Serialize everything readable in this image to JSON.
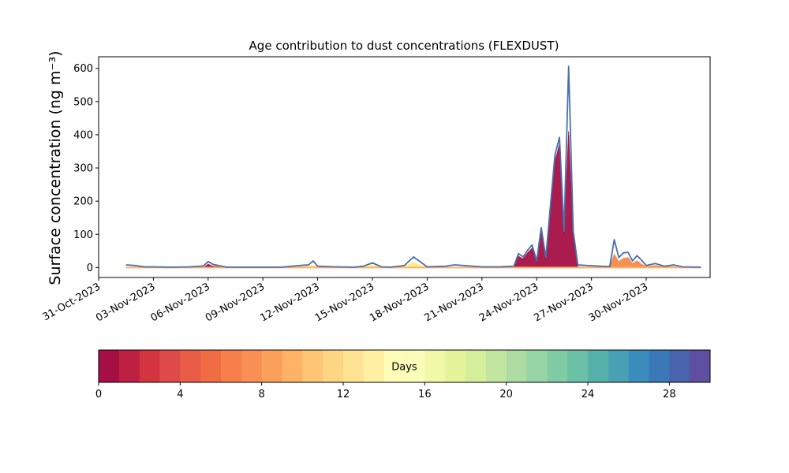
{
  "chart_data": [
    {
      "type": "area",
      "title": "Age contribution to dust concentrations (FLEXDUST)",
      "ylabel": "Surface concentration (ng m⁻³)",
      "xlabel": "",
      "x_axis": "date",
      "xlim": [
        "2023-10-31T00:00",
        "2023-12-03T12:00"
      ],
      "ylim": [
        -30,
        635
      ],
      "grid": false,
      "x_ticks": [
        "31-Oct-2023",
        "03-Nov-2023",
        "06-Nov-2023",
        "09-Nov-2023",
        "12-Nov-2023",
        "15-Nov-2023",
        "18-Nov-2023",
        "21-Nov-2023",
        "24-Nov-2023",
        "27-Nov-2023",
        "30-Nov-2023"
      ],
      "y_ticks": [
        0,
        100,
        200,
        300,
        400,
        500,
        600
      ],
      "series": [
        {
          "description": "total (all ages, outline)",
          "color": "#4a6fad",
          "points": [
            [
              "2023-11-01T12:00",
              8
            ],
            [
              "2023-11-02T00:00",
              6
            ],
            [
              "2023-11-02T12:00",
              2
            ],
            [
              "2023-11-03T00:00",
              2
            ],
            [
              "2023-11-04T00:00",
              1
            ],
            [
              "2023-11-05T00:00",
              2
            ],
            [
              "2023-11-05T18:00",
              5
            ],
            [
              "2023-11-06T00:00",
              18
            ],
            [
              "2023-11-06T06:00",
              10
            ],
            [
              "2023-11-07T00:00",
              1
            ],
            [
              "2023-11-08T00:00",
              1
            ],
            [
              "2023-11-09T00:00",
              1
            ],
            [
              "2023-11-10T00:00",
              1
            ],
            [
              "2023-11-11T00:00",
              6
            ],
            [
              "2023-11-11T12:00",
              8
            ],
            [
              "2023-11-11T18:00",
              20
            ],
            [
              "2023-11-12T00:00",
              4
            ],
            [
              "2023-11-13T00:00",
              2
            ],
            [
              "2023-11-14T00:00",
              1
            ],
            [
              "2023-11-14T12:00",
              4
            ],
            [
              "2023-11-15T00:00",
              14
            ],
            [
              "2023-11-15T12:00",
              2
            ],
            [
              "2023-11-16T00:00",
              1
            ],
            [
              "2023-11-16T18:00",
              6
            ],
            [
              "2023-11-17T06:00",
              32
            ],
            [
              "2023-11-17T12:00",
              22
            ],
            [
              "2023-11-18T00:00",
              2
            ],
            [
              "2023-11-19T00:00",
              4
            ],
            [
              "2023-11-19T12:00",
              8
            ],
            [
              "2023-11-20T00:00",
              6
            ],
            [
              "2023-11-21T00:00",
              2
            ],
            [
              "2023-11-22T00:00",
              2
            ],
            [
              "2023-11-22T18:00",
              4
            ],
            [
              "2023-11-23T00:00",
              42
            ],
            [
              "2023-11-23T06:00",
              32
            ],
            [
              "2023-11-23T12:00",
              52
            ],
            [
              "2023-11-23T18:00",
              68
            ],
            [
              "2023-11-24T00:00",
              20
            ],
            [
              "2023-11-24T06:00",
              120
            ],
            [
              "2023-11-24T12:00",
              30
            ],
            [
              "2023-11-25T00:00",
              340
            ],
            [
              "2023-11-25T06:00",
              392
            ],
            [
              "2023-11-25T12:00",
              110
            ],
            [
              "2023-11-25T18:00",
              606
            ],
            [
              "2023-11-26T00:00",
              110
            ],
            [
              "2023-11-26T06:00",
              8
            ],
            [
              "2023-11-26T18:00",
              6
            ],
            [
              "2023-11-27T12:00",
              4
            ],
            [
              "2023-11-28T00:00",
              3
            ],
            [
              "2023-11-28T06:00",
              84
            ],
            [
              "2023-11-28T12:00",
              30
            ],
            [
              "2023-11-28T18:00",
              44
            ],
            [
              "2023-11-29T00:00",
              46
            ],
            [
              "2023-11-29T06:00",
              20
            ],
            [
              "2023-11-29T12:00",
              36
            ],
            [
              "2023-11-29T18:00",
              22
            ],
            [
              "2023-11-30T00:00",
              6
            ],
            [
              "2023-11-30T12:00",
              12
            ],
            [
              "2023-12-01T00:00",
              4
            ],
            [
              "2023-12-01T12:00",
              8
            ],
            [
              "2023-12-02T00:00",
              2
            ],
            [
              "2023-12-03T00:00",
              1
            ]
          ]
        },
        {
          "description": "age 0-1 days (innermost, dark red)",
          "color": "#a50f44",
          "points": [
            [
              "2023-11-01T12:00",
              0
            ],
            [
              "2023-11-05T18:00",
              0
            ],
            [
              "2023-11-06T00:00",
              10
            ],
            [
              "2023-11-06T06:00",
              4
            ],
            [
              "2023-11-07T00:00",
              0
            ],
            [
              "2023-11-22T18:00",
              0
            ],
            [
              "2023-11-23T00:00",
              34
            ],
            [
              "2023-11-23T06:00",
              26
            ],
            [
              "2023-11-23T12:00",
              44
            ],
            [
              "2023-11-23T18:00",
              58
            ],
            [
              "2023-11-24T00:00",
              14
            ],
            [
              "2023-11-24T06:00",
              110
            ],
            [
              "2023-11-24T12:00",
              22
            ],
            [
              "2023-11-25T00:00",
              320
            ],
            [
              "2023-11-25T06:00",
              372
            ],
            [
              "2023-11-25T12:00",
              96
            ],
            [
              "2023-11-25T18:00",
              410
            ],
            [
              "2023-11-26T00:00",
              90
            ],
            [
              "2023-11-26T06:00",
              2
            ],
            [
              "2023-11-27T00:00",
              0
            ],
            [
              "2023-12-03T00:00",
              0
            ]
          ]
        },
        {
          "description": "age ~4-10 days (orange)",
          "color": "#f5894b",
          "points": [
            [
              "2023-11-27T12:00",
              0
            ],
            [
              "2023-11-28T00:00",
              2
            ],
            [
              "2023-11-28T06:00",
              40
            ],
            [
              "2023-11-28T12:00",
              18
            ],
            [
              "2023-11-28T18:00",
              28
            ],
            [
              "2023-11-29T00:00",
              30
            ],
            [
              "2023-11-29T06:00",
              12
            ],
            [
              "2023-11-29T12:00",
              20
            ],
            [
              "2023-11-29T18:00",
              10
            ],
            [
              "2023-11-30T00:00",
              3
            ],
            [
              "2023-11-30T12:00",
              6
            ],
            [
              "2023-12-01T00:00",
              2
            ],
            [
              "2023-12-01T12:00",
              3
            ],
            [
              "2023-12-02T00:00",
              0
            ]
          ]
        },
        {
          "description": "age ~12-16 days (yellow)",
          "color": "#fbec8f",
          "points": [
            [
              "2023-11-10T18:00",
              0
            ],
            [
              "2023-11-11T00:00",
              4
            ],
            [
              "2023-11-11T12:00",
              5
            ],
            [
              "2023-11-11T18:00",
              8
            ],
            [
              "2023-11-12T00:00",
              1
            ],
            [
              "2023-11-14T12:00",
              2
            ],
            [
              "2023-11-15T00:00",
              8
            ],
            [
              "2023-11-15T12:00",
              0
            ],
            [
              "2023-11-16T18:00",
              3
            ],
            [
              "2023-11-17T06:00",
              16
            ],
            [
              "2023-11-17T12:00",
              10
            ],
            [
              "2023-11-18T00:00",
              0
            ]
          ]
        }
      ]
    },
    {
      "type": "colorbar",
      "label": "Days",
      "range": [
        0,
        30
      ],
      "ticks": [
        0,
        4,
        8,
        12,
        16,
        20,
        24,
        28
      ],
      "colors": [
        "#a50f44",
        "#bd2040",
        "#d3343f",
        "#df4a4a",
        "#e95d47",
        "#f06d43",
        "#f67f4b",
        "#f98f55",
        "#fba05b",
        "#fdb265",
        "#fdc574",
        "#fed683",
        "#fee492",
        "#fff0a4",
        "#fffcb7",
        "#fafdb8",
        "#f1f9a9",
        "#e5f49b",
        "#d5ee9c",
        "#c2e69f",
        "#acdca2",
        "#97d4a4",
        "#7ecba4",
        "#6bc0a5",
        "#57b1ab",
        "#4aa0b3",
        "#3a8cbc",
        "#3a78b8",
        "#4964ad",
        "#5e4fa2"
      ]
    }
  ]
}
